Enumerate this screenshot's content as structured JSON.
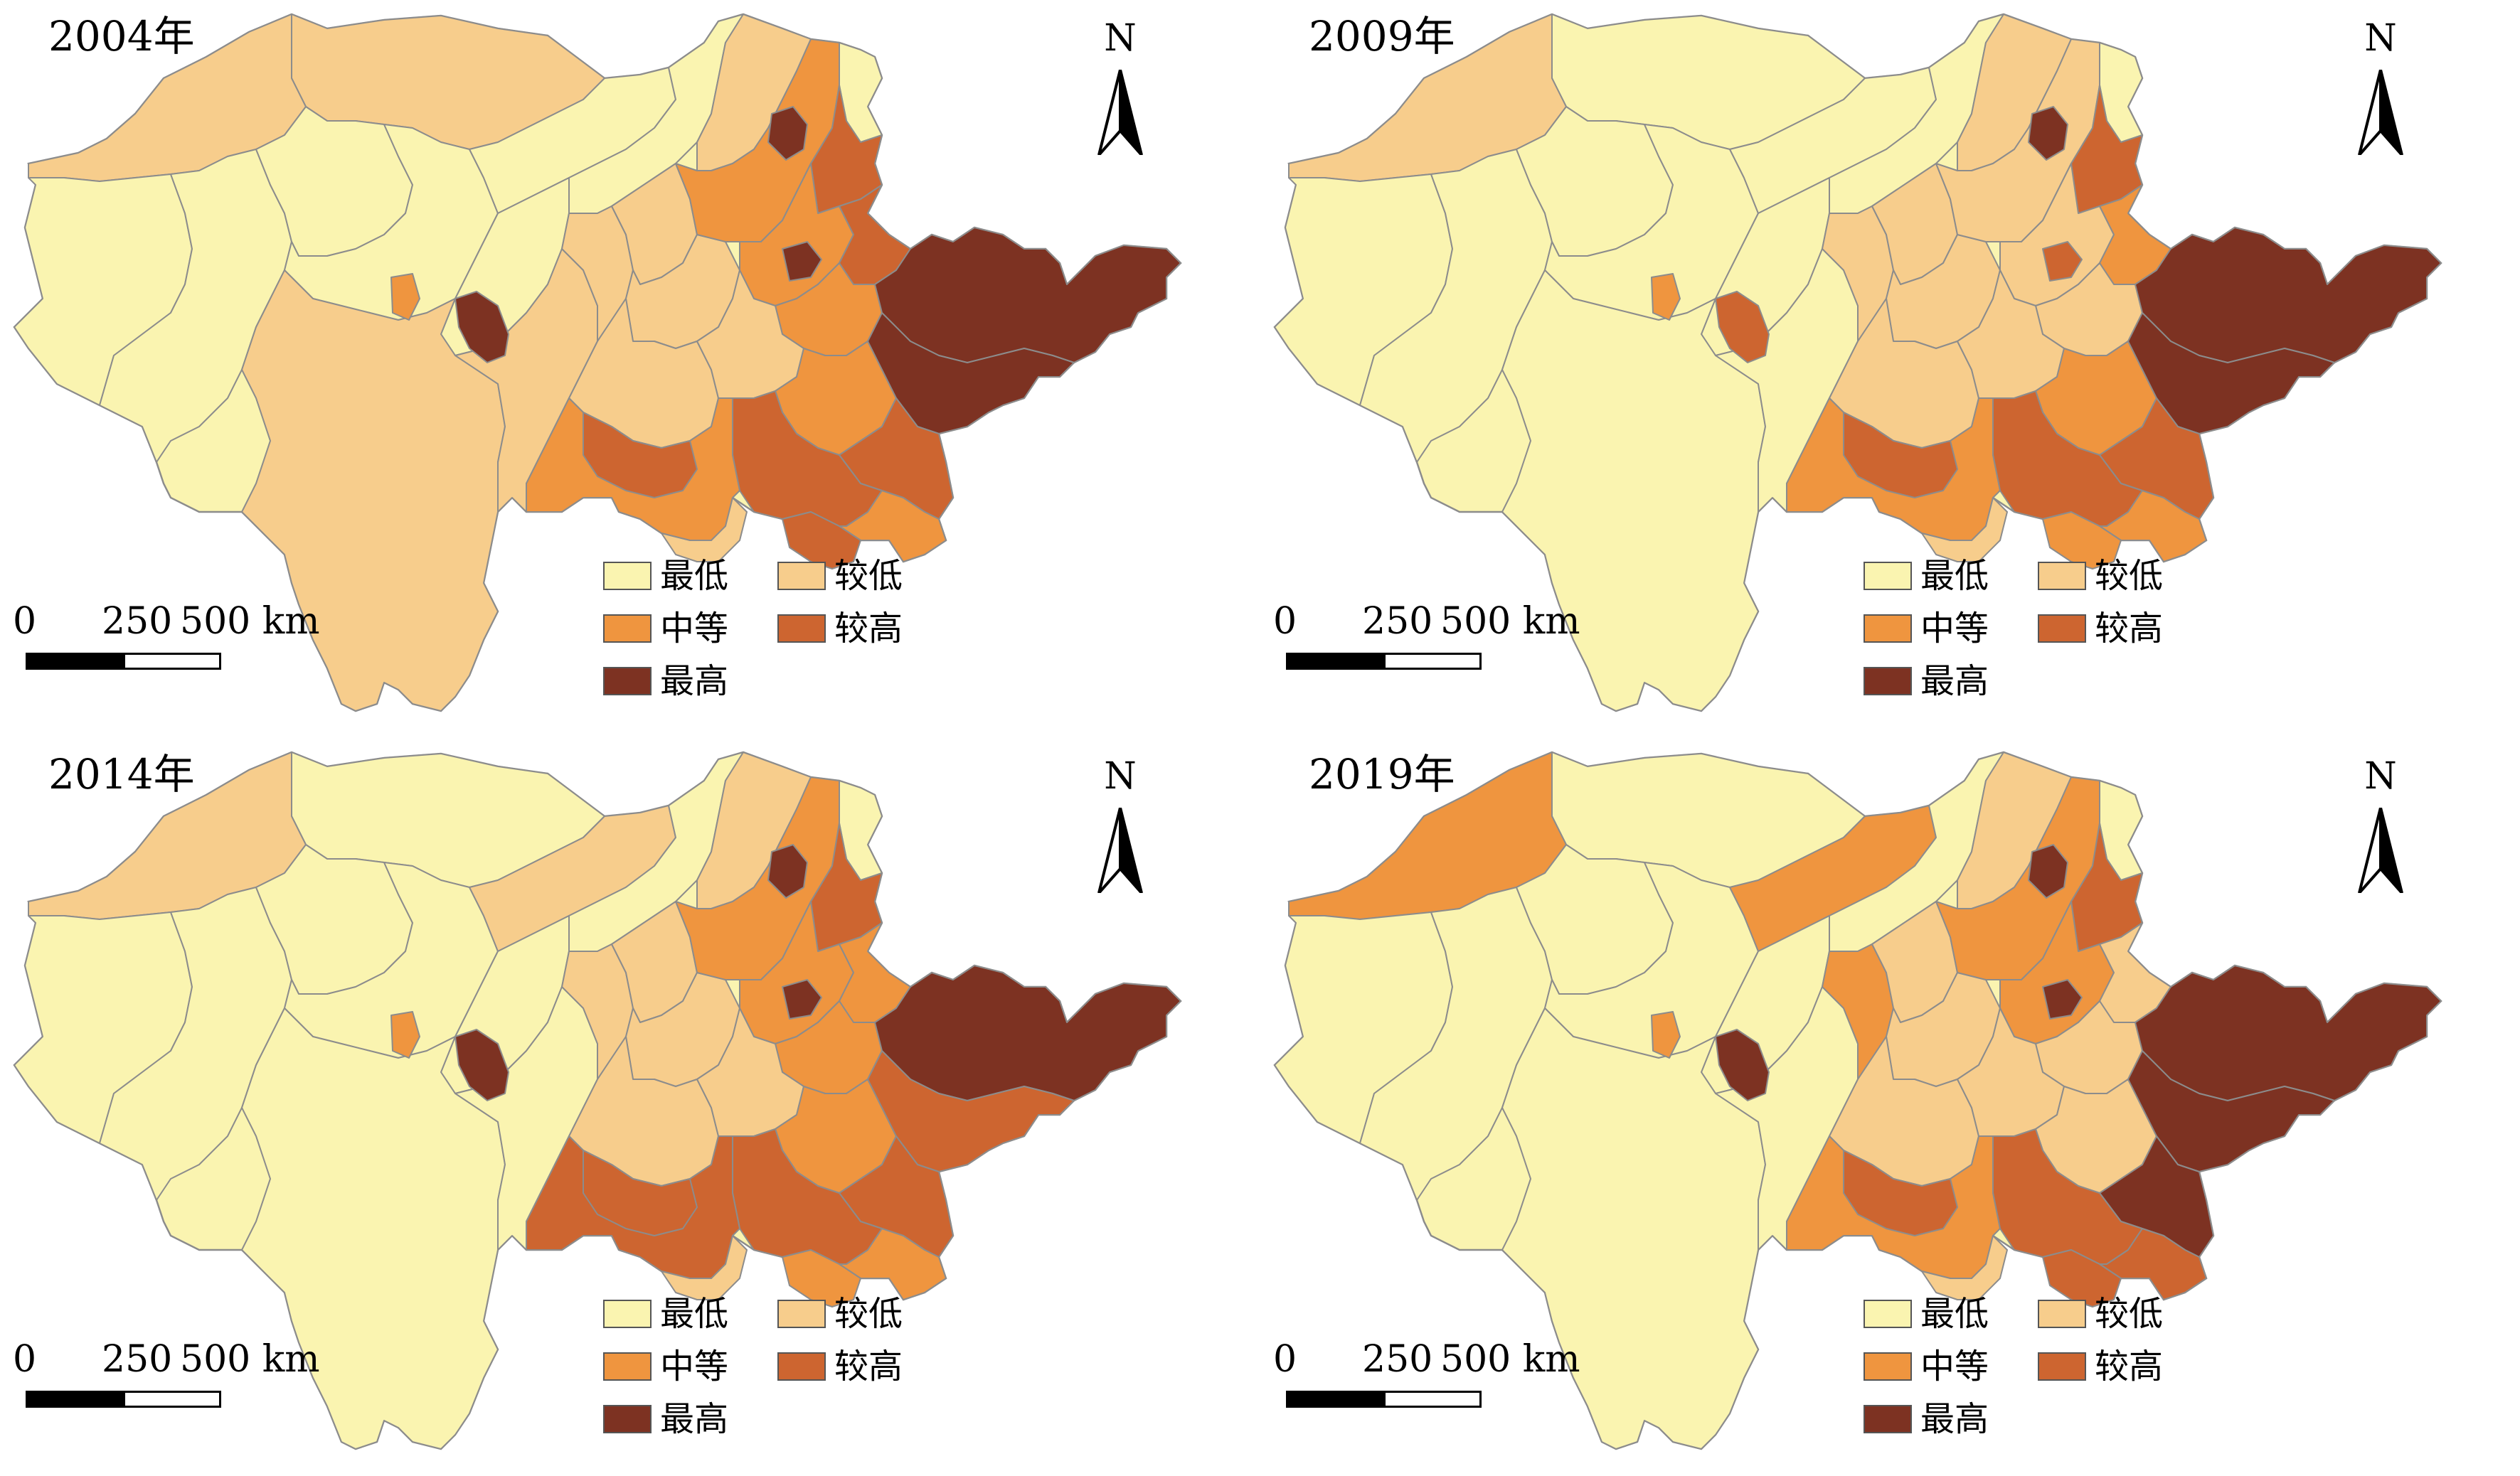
{
  "legend": {
    "classes": [
      {
        "key": "lowest",
        "label": "最低",
        "color": "#faf4b0"
      },
      {
        "key": "low",
        "label": "较低",
        "color": "#f7cd8c"
      },
      {
        "key": "medium",
        "label": "中等",
        "color": "#ef953f"
      },
      {
        "key": "high",
        "label": "较高",
        "color": "#cd6530"
      },
      {
        "key": "highest",
        "label": "最高",
        "color": "#7d3222"
      }
    ]
  },
  "scale_bar": {
    "tick0": "0",
    "tick1": "250",
    "tick2": "500 km"
  },
  "north_label": "N",
  "border_color": "#8c8c8c",
  "panels": [
    {
      "title": "2004年",
      "regions": {
        "north_strip": "low",
        "northwest": "low",
        "tibet_west": "lowest",
        "tibet_east": "lowest",
        "qinghai_west": "lowest",
        "qinghai_east": "lowest",
        "gansu_corridor": "lowest",
        "gansu_south": "lowest",
        "yunnan": "low",
        "sichuan_east": "low",
        "mongolia_central": "lowest",
        "ningxia": "low",
        "inner_west": "low",
        "shaanxi_north": "low",
        "shaanxi_south": "low",
        "mongolia_east": "low",
        "northeast_big": "medium",
        "northeast_tip": "lowest",
        "heilongjiang_s": "high",
        "liaoning": "medium",
        "jilin": "high",
        "hebei": "medium",
        "shanxi": "low",
        "henan": "medium",
        "shandong": "highest",
        "jiangsu": "highest",
        "anhui": "high",
        "hubei": "high",
        "hunan": "medium",
        "sichuan_basin": "medium",
        "chongqing": "high",
        "guizhou": "low",
        "jiangxi": "high",
        "xian_spot": "highest",
        "lanzhou_spot": "medium",
        "harbin_spot": "highest",
        "beijing_spot": "highest"
      }
    },
    {
      "title": "2009年",
      "regions": {
        "north_strip": "lowest",
        "northwest": "low",
        "tibet_west": "lowest",
        "tibet_east": "lowest",
        "qinghai_west": "lowest",
        "qinghai_east": "lowest",
        "gansu_corridor": "lowest",
        "gansu_south": "lowest",
        "yunnan": "lowest",
        "sichuan_east": "lowest",
        "mongolia_central": "lowest",
        "ningxia": "low",
        "inner_west": "low",
        "shaanxi_north": "low",
        "shaanxi_south": "low",
        "mongolia_east": "low",
        "northeast_big": "low",
        "northeast_tip": "lowest",
        "heilongjiang_s": "high",
        "liaoning": "low",
        "jilin": "medium",
        "hebei": "low",
        "shanxi": "low",
        "henan": "medium",
        "shandong": "highest",
        "jiangsu": "highest",
        "anhui": "high",
        "hubei": "high",
        "hunan": "medium",
        "sichuan_basin": "medium",
        "chongqing": "high",
        "guizhou": "low",
        "jiangxi": "medium",
        "xian_spot": "high",
        "lanzhou_spot": "medium",
        "harbin_spot": "highest",
        "beijing_spot": "high"
      }
    },
    {
      "title": "2014年",
      "regions": {
        "north_strip": "lowest",
        "northwest": "low",
        "tibet_west": "lowest",
        "tibet_east": "lowest",
        "qinghai_west": "lowest",
        "qinghai_east": "lowest",
        "gansu_corridor": "low",
        "gansu_south": "lowest",
        "yunnan": "lowest",
        "sichuan_east": "lowest",
        "mongolia_central": "lowest",
        "ningxia": "low",
        "inner_west": "low",
        "shaanxi_north": "low",
        "shaanxi_south": "low",
        "mongolia_east": "low",
        "northeast_big": "medium",
        "northeast_tip": "lowest",
        "heilongjiang_s": "high",
        "liaoning": "medium",
        "jilin": "medium",
        "hebei": "medium",
        "shanxi": "low",
        "henan": "medium",
        "shandong": "highest",
        "jiangsu": "high",
        "anhui": "high",
        "hubei": "high",
        "hunan": "medium",
        "sichuan_basin": "high",
        "chongqing": "high",
        "guizhou": "low",
        "jiangxi": "medium",
        "xian_spot": "highest",
        "lanzhou_spot": "medium",
        "harbin_spot": "highest",
        "beijing_spot": "highest"
      }
    },
    {
      "title": "2019年",
      "regions": {
        "north_strip": "lowest",
        "northwest": "medium",
        "tibet_west": "lowest",
        "tibet_east": "lowest",
        "qinghai_west": "lowest",
        "qinghai_east": "lowest",
        "gansu_corridor": "medium",
        "gansu_south": "lowest",
        "yunnan": "lowest",
        "sichuan_east": "lowest",
        "mongolia_central": "lowest",
        "ningxia": "medium",
        "inner_west": "low",
        "shaanxi_north": "low",
        "shaanxi_south": "low",
        "mongolia_east": "low",
        "northeast_big": "medium",
        "northeast_tip": "lowest",
        "heilongjiang_s": "high",
        "liaoning": "medium",
        "jilin": "low",
        "hebei": "low",
        "shanxi": "low",
        "henan": "low",
        "shandong": "highest",
        "jiangsu": "highest",
        "anhui": "highest",
        "hubei": "high",
        "hunan": "high",
        "sichuan_basin": "medium",
        "chongqing": "high",
        "guizhou": "low",
        "jiangxi": "high",
        "xian_spot": "highest",
        "lanzhou_spot": "medium",
        "harbin_spot": "highest",
        "beijing_spot": "highest"
      }
    }
  ]
}
